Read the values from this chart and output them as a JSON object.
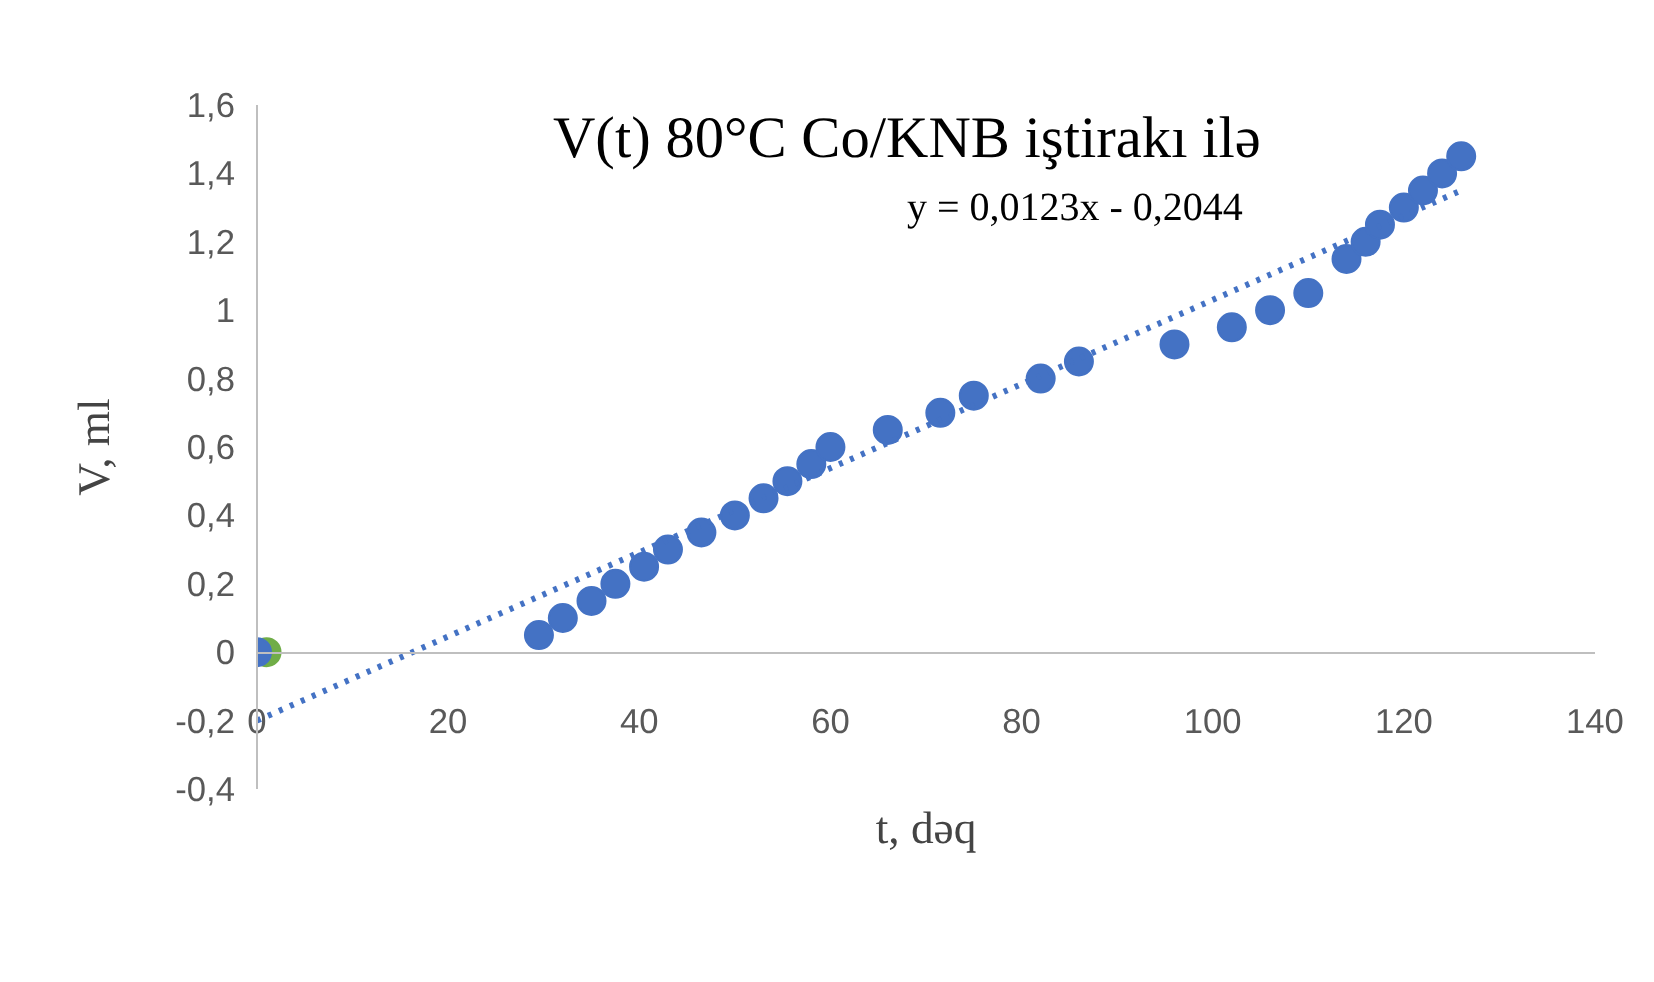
{
  "chart_data": {
    "type": "scatter",
    "title": "V(t) 80°C Co/KNB iştirakı ilə",
    "xlabel": "t, dəq",
    "ylabel": "V, ml",
    "annotations": [
      "y = 0,0123x - 0,2044"
    ],
    "xlim": [
      0,
      140
    ],
    "xticks": [
      0,
      20,
      40,
      60,
      80,
      100,
      120,
      140
    ],
    "ylim": [
      -0.4,
      1.6
    ],
    "yticks": [
      {
        "value": -0.4,
        "label": "-0,4"
      },
      {
        "value": -0.2,
        "label": "-0,2"
      },
      0,
      {
        "value": 0.2,
        "label": "0,2"
      },
      {
        "value": 0.4,
        "label": "0,4"
      },
      {
        "value": 0.6,
        "label": "0,6"
      },
      {
        "value": 0.8,
        "label": "0,8"
      },
      1,
      {
        "value": 1.2,
        "label": "1,2"
      },
      {
        "value": 1.4,
        "label": "1,4"
      },
      {
        "value": 1.6,
        "label": "1,6"
      }
    ],
    "grid": false,
    "marker": "circle",
    "series": [
      {
        "color": "#70ad47",
        "x": [
          1
        ],
        "values": [
          0
        ]
      },
      {
        "color": "#4472c4",
        "x": [
          0,
          29.5,
          32,
          35,
          37.5,
          40.5,
          43,
          46.5,
          50,
          53,
          55.5,
          58,
          60,
          66,
          71.5,
          75,
          82,
          86,
          96,
          102,
          106,
          110,
          114,
          116,
          117.5,
          120,
          122,
          124,
          126
        ],
        "values": [
          0,
          0.05,
          0.1,
          0.15,
          0.2,
          0.25,
          0.3,
          0.35,
          0.4,
          0.45,
          0.5,
          0.55,
          0.6,
          0.65,
          0.7,
          0.75,
          0.8,
          0.85,
          0.9,
          0.95,
          1.0,
          1.05,
          1.15,
          1.2,
          1.25,
          1.3,
          1.35,
          1.4,
          1.45
        ]
      },
      {
        "type": "line",
        "marker": "none",
        "color": "#4472c4",
        "line_style": "dotted",
        "x": [
          0,
          126
        ],
        "values": [
          -0.2,
          1.35
        ]
      }
    ]
  }
}
